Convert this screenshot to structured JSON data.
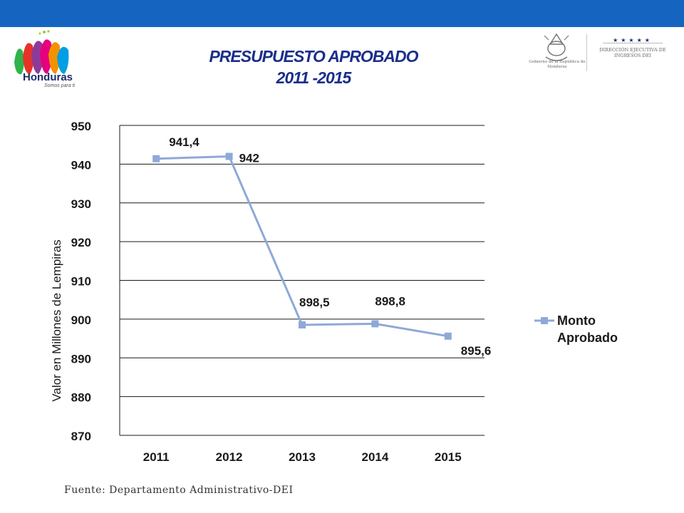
{
  "header": {
    "brand_name": "Honduras",
    "brand_tagline": "Somos para ti",
    "title_line1": "PRESUPUESTO APROBADO",
    "title_line2": "2011 -2015",
    "gov_seal_text": "Gobierno de la República de Honduras",
    "dei_stars": "★★★★★",
    "dei_name": "DIRECCIÓN EJECUTIVA DE INGRESOS DEI"
  },
  "colors": {
    "topbar": "#1565c0",
    "title": "#1a2f8a",
    "series": "#8ea9d8"
  },
  "chart_data": {
    "type": "line",
    "categories": [
      "2011",
      "2012",
      "2013",
      "2014",
      "2015"
    ],
    "series": [
      {
        "name": "Monto Aprobado",
        "values": [
          941.4,
          942,
          898.5,
          898.8,
          895.6
        ]
      }
    ],
    "data_labels": [
      "941,4",
      "942",
      "898,5",
      "898,8",
      "895,6"
    ],
    "ylabel": "Valor en Millones de Lempiras",
    "xlabel": "",
    "ylim": [
      870,
      950
    ],
    "yticks": [
      870,
      880,
      890,
      900,
      910,
      920,
      930,
      940,
      950
    ],
    "ytick_labels": [
      "870",
      "880",
      "890",
      "900",
      "910",
      "920",
      "930",
      "940",
      "950"
    ],
    "grid": true,
    "legend": "right",
    "marker": "square"
  },
  "footer": {
    "source": "Fuente: Departamento Administrativo-DEI"
  }
}
